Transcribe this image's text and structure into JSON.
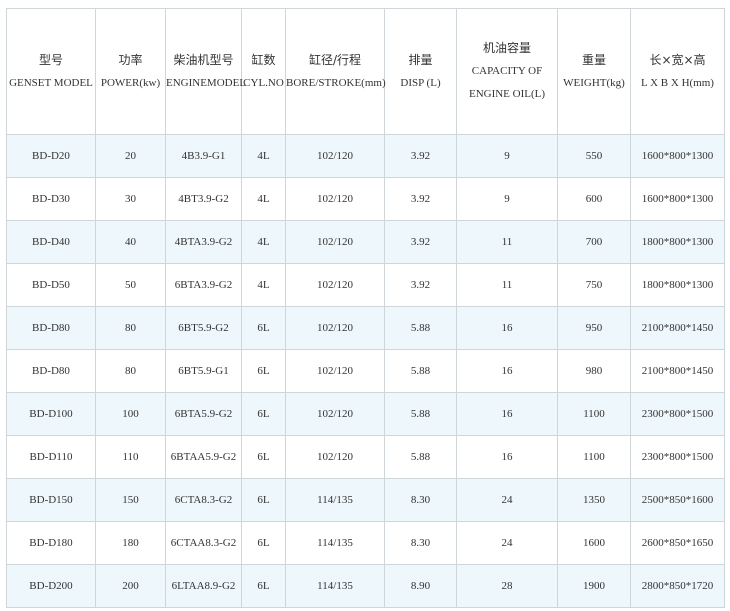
{
  "table": {
    "header": [
      [
        "型号",
        "GENSET MODEL"
      ],
      [
        "功率",
        "POWER(kw)"
      ],
      [
        "柴油机型号",
        "ENGINEMODEL"
      ],
      [
        "缸数",
        "CYL.NO"
      ],
      [
        "缸径/行程",
        "BORE/STROKE(mm)"
      ],
      [
        "排量",
        "DISP (L)"
      ],
      [
        "机油容量",
        "CAPACITY OF",
        "ENGINE OIL(L)"
      ],
      [
        "重量",
        "WEIGHT(kg)"
      ],
      [
        "长×宽×高",
        "L X B X H(mm)"
      ]
    ],
    "rows": [
      [
        "BD-D20",
        "20",
        "4B3.9-G1",
        "4L",
        "102/120",
        "3.92",
        "9",
        "550",
        "1600*800*1300"
      ],
      [
        "BD-D30",
        "30",
        "4BT3.9-G2",
        "4L",
        "102/120",
        "3.92",
        "9",
        "600",
        "1600*800*1300"
      ],
      [
        "BD-D40",
        "40",
        "4BTA3.9-G2",
        "4L",
        "102/120",
        "3.92",
        "11",
        "700",
        "1800*800*1300"
      ],
      [
        "BD-D50",
        "50",
        "6BTA3.9-G2",
        "4L",
        "102/120",
        "3.92",
        "11",
        "750",
        "1800*800*1300"
      ],
      [
        "BD-D80",
        "80",
        "6BT5.9-G2",
        "6L",
        "102/120",
        "5.88",
        "16",
        "950",
        "2100*800*1450"
      ],
      [
        "BD-D80",
        "80",
        "6BT5.9-G1",
        "6L",
        "102/120",
        "5.88",
        "16",
        "980",
        "2100*800*1450"
      ],
      [
        "BD-D100",
        "100",
        "6BTA5.9-G2",
        "6L",
        "102/120",
        "5.88",
        "16",
        "1100",
        "2300*800*1500"
      ],
      [
        "BD-D110",
        "110",
        "6BTAA5.9-G2",
        "6L",
        "102/120",
        "5.88",
        "16",
        "1100",
        "2300*800*1500"
      ],
      [
        "BD-D150",
        "150",
        "6CTA8.3-G2",
        "6L",
        "114/135",
        "8.30",
        "24",
        "1350",
        "2500*850*1600"
      ],
      [
        "BD-D180",
        "180",
        "6CTAA8.3-G2",
        "6L",
        "114/135",
        "8.30",
        "24",
        "1600",
        "2600*850*1650"
      ],
      [
        "BD-D200",
        "200",
        "6LTAA8.9-G2",
        "6L",
        "114/135",
        "8.90",
        "28",
        "1900",
        "2800*850*1720"
      ]
    ]
  }
}
